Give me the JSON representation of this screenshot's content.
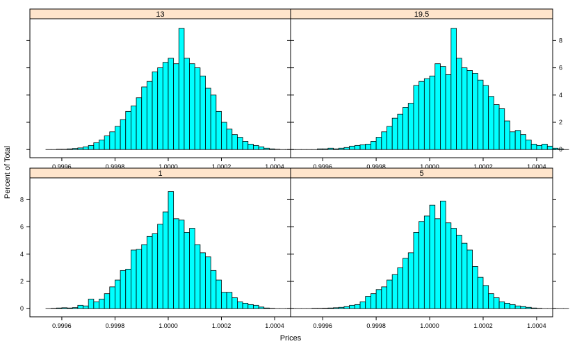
{
  "chart_data": {
    "type": "histogram-lattice",
    "xlabel": "Prices",
    "ylabel": "Percent of Total",
    "xlim": [
      0.99948,
      1.00046
    ],
    "ylim": [
      -0.6,
      9.6
    ],
    "bin_start": 0.99954,
    "bin_width": 2e-05,
    "x_ticks": [
      {
        "value": 0.9996,
        "label": "0.9996"
      },
      {
        "value": 0.9998,
        "label": "0.9998"
      },
      {
        "value": 1.0,
        "label": "1.0000"
      },
      {
        "value": 1.0002,
        "label": "1.0002"
      },
      {
        "value": 1.0004,
        "label": "1.0004"
      }
    ],
    "y_ticks": [
      {
        "value": 0,
        "label": "0"
      },
      {
        "value": 2,
        "label": "2"
      },
      {
        "value": 4,
        "label": "4"
      },
      {
        "value": 6,
        "label": "6"
      },
      {
        "value": 8,
        "label": "8"
      }
    ],
    "panels": [
      {
        "strip": "13",
        "values": [
          0,
          0,
          0.02,
          0.02,
          0.05,
          0.08,
          0.12,
          0.2,
          0.3,
          0.5,
          0.7,
          1.0,
          1.3,
          1.7,
          2.2,
          2.8,
          3.2,
          3.8,
          4.6,
          5.0,
          5.7,
          6.0,
          6.4,
          6.7,
          6.3,
          8.9,
          6.7,
          6.3,
          6.0,
          5.4,
          4.5,
          4.0,
          2.8,
          2.0,
          1.5,
          1.1,
          0.9,
          0.6,
          0.4,
          0.3,
          0.2,
          0.1,
          0.05,
          0.02,
          0,
          0,
          0,
          0,
          0
        ]
      },
      {
        "strip": "19.5",
        "values": [
          0,
          0,
          0.05,
          0.05,
          0.1,
          0.05,
          0.1,
          0.15,
          0.25,
          0.3,
          0.35,
          0.4,
          0.6,
          0.9,
          1.3,
          1.7,
          2.3,
          2.6,
          3.1,
          3.4,
          4.7,
          5.0,
          5.2,
          5.4,
          6.3,
          6.1,
          5.5,
          8.9,
          6.7,
          6.0,
          5.8,
          5.6,
          5.1,
          4.7,
          3.9,
          3.3,
          3.0,
          2.1,
          1.3,
          1.4,
          1.1,
          0.7,
          0.4,
          0.3,
          0.4,
          0.25,
          0.1,
          0.05,
          0
        ]
      },
      {
        "strip": "1",
        "values": [
          0,
          0.02,
          0.05,
          0.07,
          0.05,
          0.08,
          0.25,
          0.2,
          0.7,
          0.5,
          0.7,
          1.1,
          1.6,
          2.1,
          2.8,
          2.9,
          4.3,
          4.35,
          4.7,
          5.3,
          5.5,
          6.2,
          7.1,
          8.6,
          6.6,
          6.5,
          5.6,
          5.9,
          4.7,
          4.1,
          3.8,
          2.8,
          2.1,
          1.2,
          1.2,
          0.8,
          0.5,
          0.4,
          0.3,
          0.25,
          0.12,
          0.05,
          0.02,
          0,
          0,
          0,
          0,
          0,
          0
        ]
      },
      {
        "strip": "5",
        "values": [
          0,
          0.02,
          0.02,
          0.03,
          0.05,
          0.07,
          0.1,
          0.15,
          0.25,
          0.3,
          0.5,
          0.9,
          1.1,
          1.4,
          1.6,
          2.1,
          2.5,
          3.0,
          3.7,
          4.1,
          5.6,
          6.4,
          6.8,
          7.6,
          6.6,
          7.9,
          6.3,
          5.9,
          5.4,
          4.8,
          4.3,
          3.1,
          2.3,
          1.7,
          1.1,
          0.8,
          0.5,
          0.4,
          0.3,
          0.2,
          0.15,
          0.1,
          0.05,
          0.02,
          0,
          0,
          0,
          0,
          0
        ]
      }
    ],
    "colors": {
      "bar_fill": "#00ffff",
      "bar_stroke": "#000000",
      "strip_fill": "#ffe5cc",
      "frame": "#000000",
      "background": "#ffffff"
    },
    "grid": false
  }
}
